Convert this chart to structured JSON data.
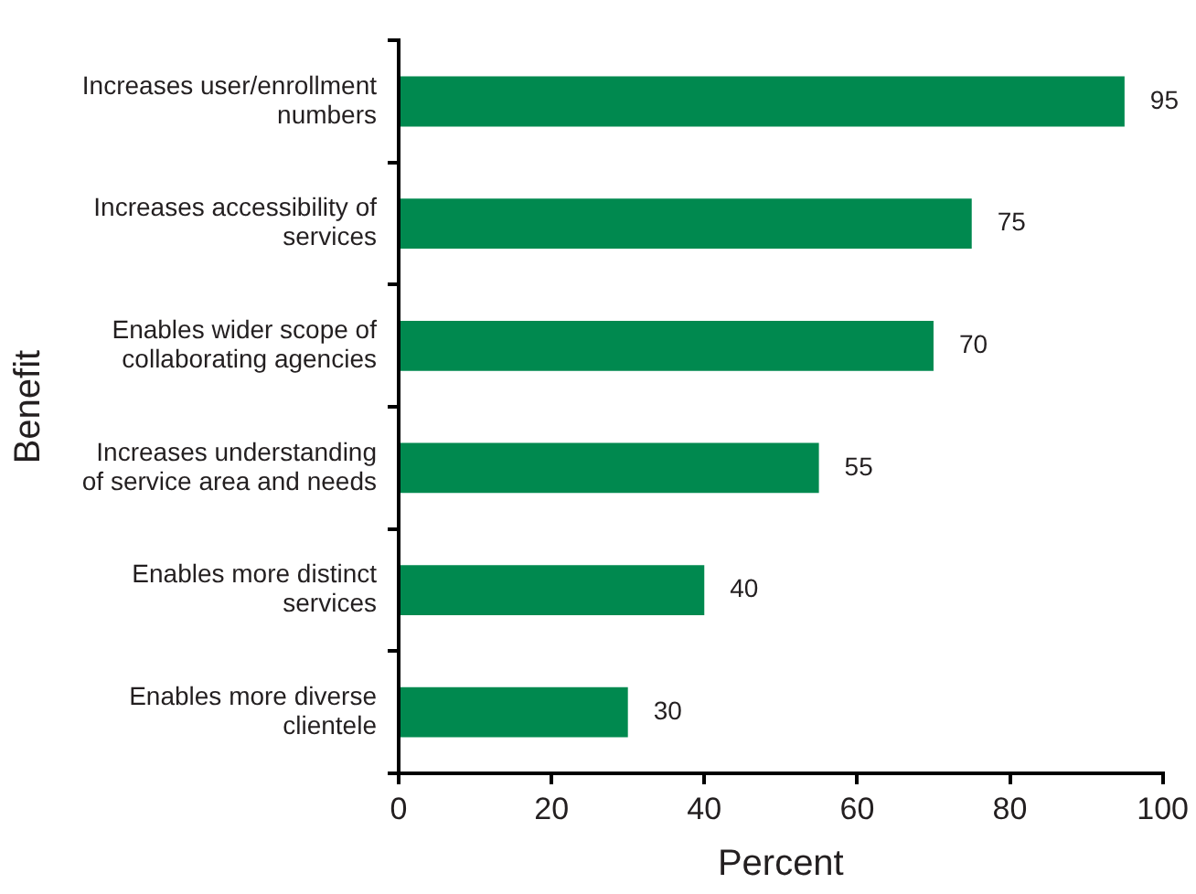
{
  "chart_data": {
    "type": "bar",
    "orientation": "horizontal",
    "categories": [
      "Increases user/enrollment numbers",
      "Increases accessibility of services",
      "Enables wider scope of collaborating agencies",
      "Increases understanding of service area and needs",
      "Enables more distinct services",
      "Enables more diverse clientele"
    ],
    "values": [
      95,
      75,
      70,
      55,
      40,
      30
    ],
    "color": "#00894f",
    "xlim": [
      0,
      100
    ],
    "xticks": [
      0,
      20,
      40,
      60,
      80,
      100
    ],
    "xlabel": "Percent",
    "ylabel": "Benefit",
    "data_labels": true,
    "grid": false,
    "legend": false
  }
}
